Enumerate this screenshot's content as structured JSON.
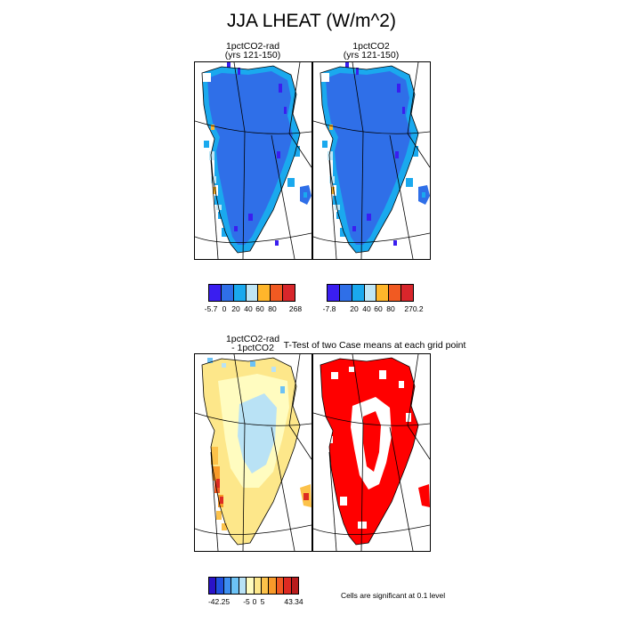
{
  "title": "JJA LHEAT (W/m^2)",
  "panels": {
    "p1": {
      "title_line1": "1pctCO2-rad",
      "title_line2": "(yrs 121-150)"
    },
    "p2": {
      "title_line1": "1pctCO2",
      "title_line2": "(yrs 121-150)"
    },
    "p3": {
      "title_line1": "1pctCO2-rad",
      "title_line2": "- 1pctCO2"
    },
    "p4": {
      "title": "T-Test of two Case means at each grid point"
    }
  },
  "colorbars": {
    "cb1": {
      "colors": [
        "#3a1ef0",
        "#2f6fe8",
        "#1aa9ee",
        "#bfe6f5",
        "#ffb62b",
        "#f15a22",
        "#d8262b"
      ],
      "labels": [
        "-5.7",
        "0",
        "20",
        "40",
        "60",
        "80",
        "268"
      ]
    },
    "cb2": {
      "colors": [
        "#3a1ef0",
        "#2f6fe8",
        "#1aa9ee",
        "#bfe6f5",
        "#ffb62b",
        "#f15a22",
        "#d8262b"
      ],
      "labels": [
        "-7.8",
        "20",
        "40",
        "60",
        "80",
        "270.2"
      ]
    },
    "cb3": {
      "colors": [
        "#2a12c8",
        "#2050e0",
        "#3d8ff0",
        "#6cc2f5",
        "#b9e2f5",
        "#fffcc0",
        "#fde78a",
        "#fcc24a",
        "#f89a2a",
        "#f15a22",
        "#dd2a22",
        "#b81c1c"
      ],
      "labels": [
        "-42.25",
        "-5",
        "0",
        "5",
        "43.34"
      ]
    }
  },
  "significance_note": "Cells are significant at 0.1 level",
  "chart_data": [
    {
      "type": "heatmap",
      "title": "1pctCO2-rad (yrs 121-150)",
      "variable": "JJA LHEAT",
      "units": "W/m^2",
      "colorbar_min": -5.7,
      "colorbar_max": 268,
      "dominant_range": "0 to 20 over ice sheet; 20-60 along margins"
    },
    {
      "type": "heatmap",
      "title": "1pctCO2 (yrs 121-150)",
      "variable": "JJA LHEAT",
      "units": "W/m^2",
      "colorbar_min": -7.8,
      "colorbar_max": 270.2,
      "dominant_range": "0 to 20 over ice sheet; 20-60 along margins"
    },
    {
      "type": "heatmap",
      "title": "1pctCO2-rad - 1pctCO2",
      "variable": "JJA LHEAT difference",
      "units": "W/m^2",
      "colorbar_min": -42.25,
      "colorbar_max": 43.34,
      "dominant_range": "-5 to 5 over most of ice sheet; positive along west margin"
    },
    {
      "type": "heatmap",
      "title": "T-Test of two Case means at each grid point",
      "significance_level": 0.1,
      "significant_color": "#ff0000"
    }
  ]
}
